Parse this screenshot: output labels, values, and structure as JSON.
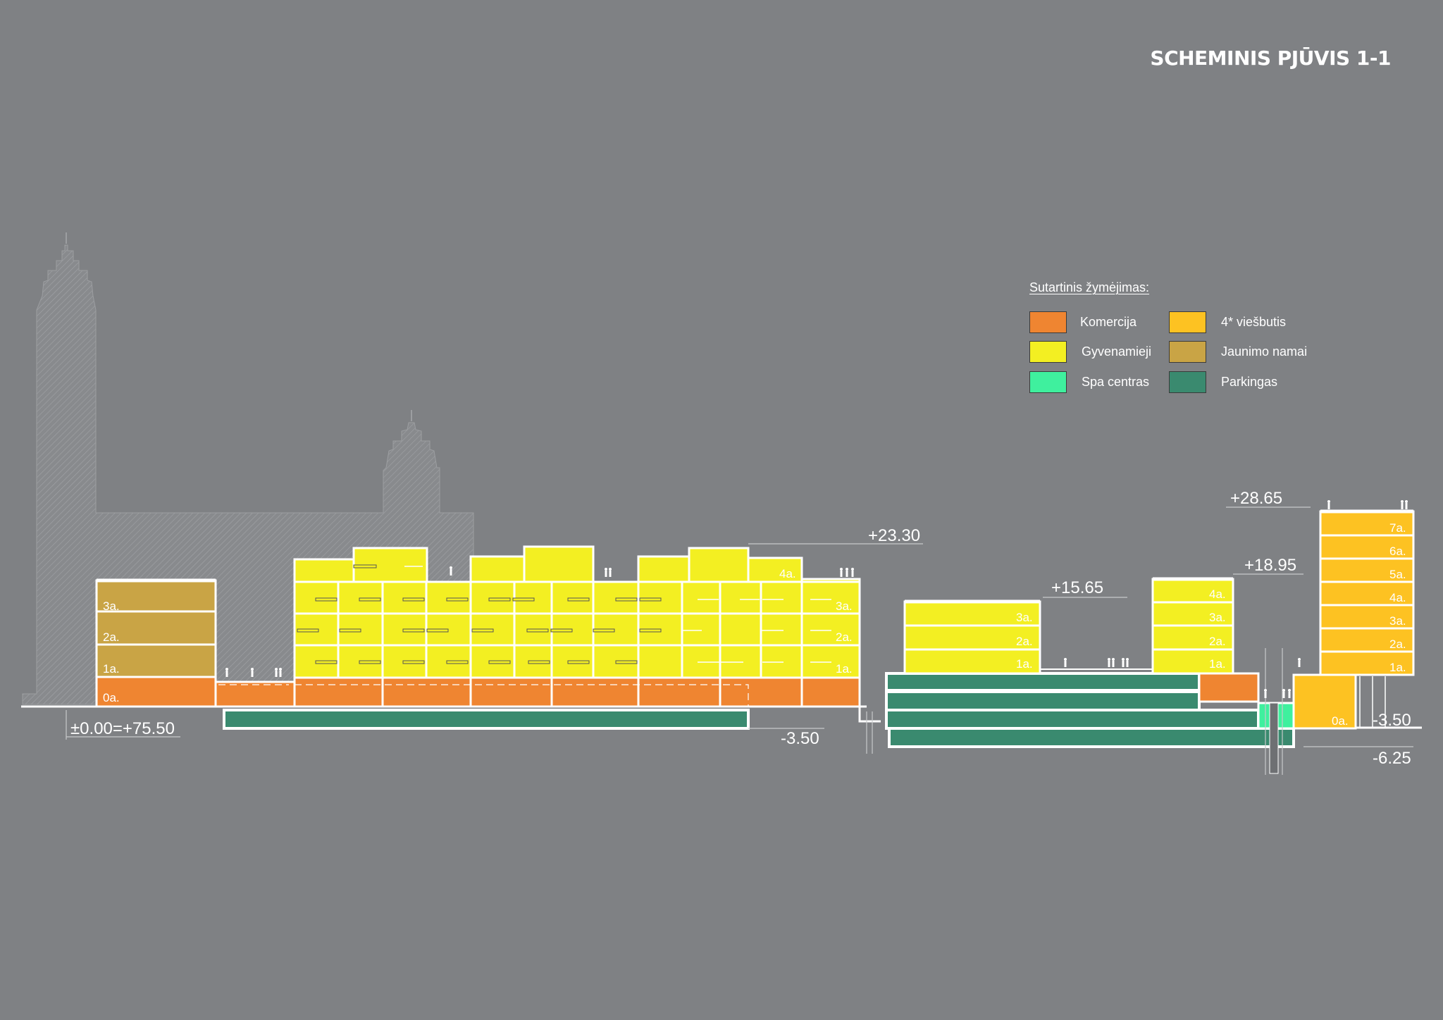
{
  "title": "SCHEMINIS PJŪVIS 1-1",
  "legend": {
    "title": "Sutartinis žymėjimas:",
    "items": [
      {
        "label": "Komercija",
        "color": "#ef8531"
      },
      {
        "label": "Gyvenamieji",
        "color": "#f3ef22"
      },
      {
        "label": "Spa centras",
        "color": "#3ff09e"
      },
      {
        "label": "4* viešbutis",
        "color": "#fdc222"
      },
      {
        "label": "Jaunimo namai",
        "color": "#c9a445"
      },
      {
        "label": "Parkingas",
        "color": "#3a8a6f"
      }
    ]
  },
  "levels": {
    "base": "±0.00=+75.50",
    "l_2330": "+23.30",
    "l_1565": "+15.65",
    "l_1895": "+18.95",
    "l_2865": "+28.65",
    "l_m350_left": "-3.50",
    "l_m350_right": "-3.50",
    "l_m625": "-6.25"
  },
  "floor_labels": {
    "youth": [
      "3a.",
      "2a.",
      "1a.",
      "0a."
    ],
    "residential_a": [
      "4a.",
      "3a.",
      "2a.",
      "1a."
    ],
    "residential_b": [
      "3a.",
      "2a.",
      "1a."
    ],
    "residential_c": [
      "4a.",
      "3a.",
      "2a.",
      "1a."
    ],
    "hotel": [
      "7a.",
      "6a.",
      "5a.",
      "4a.",
      "3a.",
      "2a.",
      "1a.",
      "0a."
    ]
  }
}
